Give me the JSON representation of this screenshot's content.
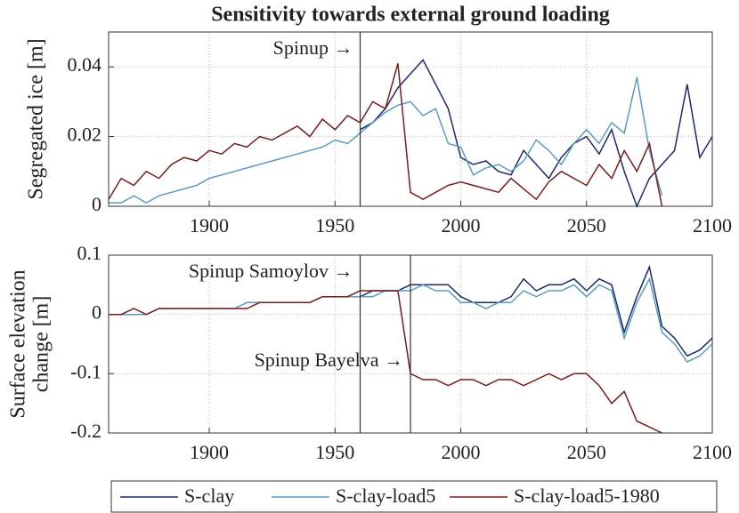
{
  "chart_data": [
    {
      "type": "line",
      "title": "Sensitivity towards external ground loading",
      "ylabel": [
        "Segregated ice [m]"
      ],
      "x": [
        1860,
        1865,
        1870,
        1875,
        1880,
        1885,
        1890,
        1895,
        1900,
        1905,
        1910,
        1915,
        1920,
        1925,
        1930,
        1935,
        1940,
        1945,
        1950,
        1955,
        1960,
        1965,
        1970,
        1975,
        1980,
        1985,
        1990,
        1995,
        2000,
        2005,
        2010,
        2015,
        2020,
        2025,
        2030,
        2035,
        2040,
        2045,
        2050,
        2055,
        2060,
        2065,
        2070,
        2075,
        2080,
        2085,
        2090,
        2095,
        2100
      ],
      "series": [
        {
          "name": "S-clay",
          "color": "#1b2a6b",
          "values": [
            null,
            null,
            null,
            null,
            null,
            null,
            null,
            null,
            null,
            null,
            null,
            null,
            null,
            null,
            null,
            null,
            null,
            null,
            null,
            null,
            0.022,
            0.024,
            0.028,
            0.034,
            0.038,
            0.042,
            0.035,
            0.028,
            0.014,
            0.012,
            0.013,
            0.01,
            0.009,
            0.016,
            0.012,
            0.008,
            0.014,
            0.018,
            0.02,
            0.015,
            0.022,
            0.01,
            0.0,
            0.008,
            0.012,
            0.016,
            0.035,
            0.014,
            0.02
          ]
        },
        {
          "name": "S-clay-load5",
          "color": "#5b9cc0",
          "values": [
            0.001,
            0.001,
            0.003,
            0.001,
            0.003,
            0.004,
            0.005,
            0.006,
            0.008,
            0.009,
            0.01,
            0.011,
            0.012,
            0.013,
            0.014,
            0.015,
            0.016,
            0.017,
            0.019,
            0.018,
            0.021,
            0.024,
            0.027,
            0.029,
            0.03,
            0.026,
            0.028,
            0.018,
            0.017,
            0.009,
            0.011,
            0.012,
            0.01,
            0.013,
            0.019,
            0.016,
            0.012,
            0.018,
            0.022,
            0.018,
            0.024,
            0.021,
            0.037,
            0.016,
            0.003,
            null,
            null,
            null,
            null
          ]
        },
        {
          "name": "S-clay-load5-1980",
          "color": "#7a1c1c",
          "values": [
            0.002,
            0.008,
            0.006,
            0.01,
            0.008,
            0.012,
            0.014,
            0.013,
            0.016,
            0.015,
            0.018,
            0.017,
            0.02,
            0.019,
            0.021,
            0.023,
            0.02,
            0.025,
            0.022,
            0.026,
            0.024,
            0.03,
            0.028,
            0.041,
            0.004,
            0.002,
            0.004,
            0.006,
            0.007,
            0.006,
            0.005,
            0.004,
            0.008,
            0.005,
            0.002,
            0.007,
            0.01,
            0.008,
            0.006,
            0.012,
            0.008,
            0.016,
            0.01,
            0.018,
            0.0,
            null,
            null,
            null,
            null
          ]
        }
      ],
      "xlim": [
        1860,
        2100
      ],
      "xticks": [
        1900,
        1950,
        2000,
        2050,
        2100
      ],
      "ylim": [
        0,
        0.05
      ],
      "yticks": [
        0,
        0.02,
        0.04
      ],
      "grid": true,
      "vlines": [
        1960
      ],
      "annotations": [
        {
          "text": "Spinup →",
          "x": 1960
        }
      ]
    },
    {
      "type": "line",
      "ylabel": [
        "Surface elevation",
        "change [m]"
      ],
      "x": [
        1860,
        1865,
        1870,
        1875,
        1880,
        1885,
        1890,
        1895,
        1900,
        1905,
        1910,
        1915,
        1920,
        1925,
        1930,
        1935,
        1940,
        1945,
        1950,
        1955,
        1960,
        1965,
        1970,
        1975,
        1980,
        1985,
        1990,
        1995,
        2000,
        2005,
        2010,
        2015,
        2020,
        2025,
        2030,
        2035,
        2040,
        2045,
        2050,
        2055,
        2060,
        2065,
        2070,
        2075,
        2080,
        2085,
        2090,
        2095,
        2100
      ],
      "series": [
        {
          "name": "S-clay",
          "color": "#1b2a6b",
          "values": [
            null,
            null,
            null,
            null,
            null,
            null,
            null,
            null,
            null,
            null,
            null,
            null,
            null,
            null,
            null,
            null,
            null,
            null,
            null,
            null,
            0.03,
            0.04,
            0.04,
            0.04,
            0.05,
            0.05,
            0.05,
            0.05,
            0.03,
            0.02,
            0.02,
            0.02,
            0.03,
            0.06,
            0.04,
            0.05,
            0.05,
            0.06,
            0.04,
            0.06,
            0.05,
            -0.03,
            0.03,
            0.08,
            -0.02,
            -0.04,
            -0.07,
            -0.06,
            -0.04
          ]
        },
        {
          "name": "S-clay-load5",
          "color": "#5b9cc0",
          "values": [
            0,
            0,
            0,
            0,
            0.01,
            0.01,
            0.01,
            0.01,
            0.01,
            0.01,
            0.01,
            0.02,
            0.02,
            0.02,
            0.02,
            0.02,
            0.02,
            0.03,
            0.03,
            0.03,
            0.03,
            0.03,
            0.04,
            0.04,
            0.04,
            0.05,
            0.04,
            0.04,
            0.02,
            0.02,
            0.01,
            0.02,
            0.02,
            0.04,
            0.03,
            0.04,
            0.04,
            0.05,
            0.03,
            0.05,
            0.04,
            -0.04,
            0.02,
            0.06,
            -0.03,
            -0.05,
            -0.08,
            -0.07,
            -0.05
          ]
        },
        {
          "name": "S-clay-load5-1980",
          "color": "#7a1c1c",
          "values": [
            0,
            0,
            0.01,
            0,
            0.01,
            0.01,
            0.01,
            0.01,
            0.01,
            0.01,
            0.01,
            0.01,
            0.02,
            0.02,
            0.02,
            0.02,
            0.02,
            0.03,
            0.03,
            0.03,
            0.04,
            0.04,
            0.04,
            0.04,
            -0.1,
            -0.11,
            -0.11,
            -0.12,
            -0.11,
            -0.11,
            -0.12,
            -0.11,
            -0.11,
            -0.12,
            -0.11,
            -0.1,
            -0.11,
            -0.1,
            -0.1,
            -0.12,
            -0.15,
            -0.13,
            -0.18,
            -0.19,
            -0.2,
            null,
            null,
            null,
            null
          ]
        }
      ],
      "xlim": [
        1860,
        2100
      ],
      "xticks": [
        1900,
        1950,
        2000,
        2050,
        2100
      ],
      "ylim": [
        -0.2,
        0.1
      ],
      "yticks": [
        -0.2,
        -0.1,
        0,
        0.1
      ],
      "grid": true,
      "vlines": [
        1960,
        1980
      ],
      "annotations": [
        {
          "text": "Spinup Samoylov →",
          "x": 1960,
          "y": 0.07
        },
        {
          "text": "Spinup Bayelva →",
          "x": 1980,
          "y": -0.08
        }
      ],
      "legend": "bottom"
    }
  ]
}
